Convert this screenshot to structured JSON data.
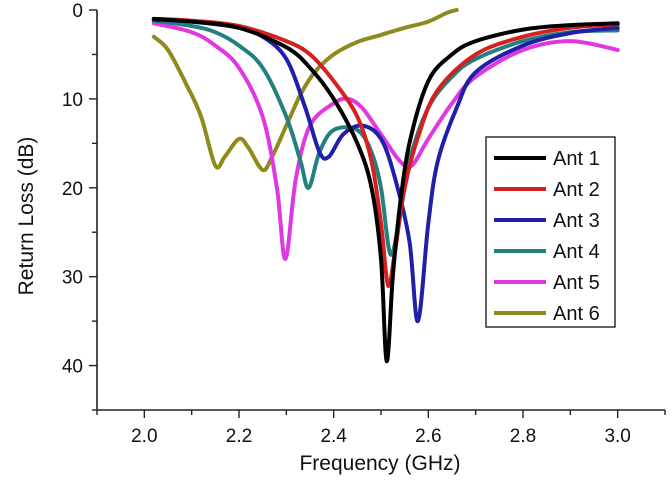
{
  "chart_data": {
    "type": "line",
    "title": "",
    "xlabel": "Frequency (GHz)",
    "ylabel": "Return Loss (dB)",
    "xlim": [
      1.9,
      3.1
    ],
    "ylim": [
      0,
      45
    ],
    "y_inverted": true,
    "x_ticks": [
      2.0,
      2.2,
      2.4,
      2.6,
      2.8,
      3.0
    ],
    "x_tick_labels": [
      "2.0",
      "2.2",
      "2.4",
      "2.6",
      "2.8",
      "3.0"
    ],
    "y_ticks": [
      0,
      10,
      20,
      30,
      40
    ],
    "y_tick_labels": [
      "0",
      "10",
      "20",
      "30",
      "40"
    ],
    "grid": false,
    "legend_position": "right",
    "series": [
      {
        "name": "Ant 1",
        "color": "#000000",
        "points": [
          [
            2.02,
            1.0
          ],
          [
            2.1,
            1.3
          ],
          [
            2.2,
            2.0
          ],
          [
            2.3,
            4.2
          ],
          [
            2.35,
            6.5
          ],
          [
            2.4,
            10.0
          ],
          [
            2.45,
            15.0
          ],
          [
            2.48,
            20.0
          ],
          [
            2.5,
            28.0
          ],
          [
            2.512,
            39.5
          ],
          [
            2.525,
            30.0
          ],
          [
            2.54,
            22.0
          ],
          [
            2.56,
            15.0
          ],
          [
            2.6,
            8.0
          ],
          [
            2.65,
            5.0
          ],
          [
            2.7,
            3.5
          ],
          [
            2.8,
            2.2
          ],
          [
            2.9,
            1.7
          ],
          [
            3.0,
            1.5
          ]
        ]
      },
      {
        "name": "Ant 2",
        "color": "#d42020",
        "points": [
          [
            2.02,
            1.0
          ],
          [
            2.1,
            1.2
          ],
          [
            2.2,
            1.8
          ],
          [
            2.3,
            3.5
          ],
          [
            2.35,
            5.0
          ],
          [
            2.4,
            8.0
          ],
          [
            2.45,
            12.0
          ],
          [
            2.48,
            17.0
          ],
          [
            2.5,
            24.0
          ],
          [
            2.515,
            31.0
          ],
          [
            2.53,
            27.0
          ],
          [
            2.55,
            20.0
          ],
          [
            2.58,
            14.0
          ],
          [
            2.62,
            9.0
          ],
          [
            2.7,
            5.0
          ],
          [
            2.8,
            3.0
          ],
          [
            2.9,
            2.0
          ],
          [
            3.0,
            1.6
          ]
        ]
      },
      {
        "name": "Ant 3",
        "color": "#1f1fa8",
        "points": [
          [
            2.02,
            1.1
          ],
          [
            2.1,
            1.3
          ],
          [
            2.2,
            2.0
          ],
          [
            2.25,
            3.0
          ],
          [
            2.3,
            5.5
          ],
          [
            2.34,
            11.0
          ],
          [
            2.37,
            16.0
          ],
          [
            2.39,
            16.5
          ],
          [
            2.42,
            14.0
          ],
          [
            2.46,
            13.0
          ],
          [
            2.5,
            14.5
          ],
          [
            2.53,
            19.0
          ],
          [
            2.56,
            26.0
          ],
          [
            2.578,
            35.0
          ],
          [
            2.6,
            24.0
          ],
          [
            2.62,
            17.0
          ],
          [
            2.66,
            11.0
          ],
          [
            2.7,
            7.0
          ],
          [
            2.8,
            4.0
          ],
          [
            2.9,
            2.6
          ],
          [
            3.0,
            2.0
          ]
        ]
      },
      {
        "name": "Ant 4",
        "color": "#23807f",
        "points": [
          [
            2.02,
            1.2
          ],
          [
            2.1,
            1.8
          ],
          [
            2.15,
            2.5
          ],
          [
            2.2,
            4.0
          ],
          [
            2.25,
            6.5
          ],
          [
            2.3,
            12.0
          ],
          [
            2.33,
            17.0
          ],
          [
            2.347,
            20.0
          ],
          [
            2.37,
            16.0
          ],
          [
            2.4,
            13.5
          ],
          [
            2.45,
            13.5
          ],
          [
            2.48,
            16.0
          ],
          [
            2.5,
            20.0
          ],
          [
            2.52,
            27.5
          ],
          [
            2.54,
            23.0
          ],
          [
            2.56,
            17.0
          ],
          [
            2.6,
            11.0
          ],
          [
            2.65,
            7.5
          ],
          [
            2.7,
            5.5
          ],
          [
            2.8,
            3.5
          ],
          [
            2.9,
            2.5
          ],
          [
            3.0,
            2.3
          ]
        ]
      },
      {
        "name": "Ant 5",
        "color": "#e038e0",
        "points": [
          [
            2.02,
            1.5
          ],
          [
            2.1,
            2.5
          ],
          [
            2.15,
            4.0
          ],
          [
            2.2,
            6.5
          ],
          [
            2.25,
            12.0
          ],
          [
            2.28,
            20.0
          ],
          [
            2.298,
            28.0
          ],
          [
            2.32,
            19.0
          ],
          [
            2.35,
            13.0
          ],
          [
            2.4,
            10.5
          ],
          [
            2.43,
            10.0
          ],
          [
            2.46,
            11.0
          ],
          [
            2.5,
            14.0
          ],
          [
            2.54,
            17.0
          ],
          [
            2.565,
            17.5
          ],
          [
            2.6,
            14.5
          ],
          [
            2.65,
            10.5
          ],
          [
            2.7,
            7.5
          ],
          [
            2.8,
            4.5
          ],
          [
            2.9,
            3.5
          ],
          [
            3.0,
            4.5
          ]
        ]
      },
      {
        "name": "Ant 6",
        "color": "#8f8a1c",
        "points": [
          [
            2.02,
            3.0
          ],
          [
            2.05,
            4.5
          ],
          [
            2.09,
            8.5
          ],
          [
            2.12,
            12.0
          ],
          [
            2.15,
            17.5
          ],
          [
            2.17,
            16.5
          ],
          [
            2.2,
            14.5
          ],
          [
            2.22,
            15.5
          ],
          [
            2.25,
            18.0
          ],
          [
            2.27,
            16.5
          ],
          [
            2.3,
            13.0
          ],
          [
            2.33,
            9.5
          ],
          [
            2.36,
            7.0
          ],
          [
            2.4,
            5.0
          ],
          [
            2.45,
            3.6
          ],
          [
            2.5,
            2.8
          ],
          [
            2.55,
            2.0
          ],
          [
            2.6,
            1.3
          ],
          [
            2.64,
            0.3
          ],
          [
            2.66,
            0.0
          ]
        ]
      }
    ]
  }
}
